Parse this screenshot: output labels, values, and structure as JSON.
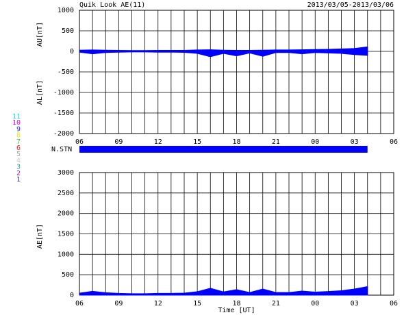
{
  "header": {
    "title": "Quik Look AE(11)",
    "date": "2013/03/05-2013/03/06"
  },
  "stations": [
    {
      "label": "11",
      "color": "#00e0e0"
    },
    {
      "label": "10",
      "color": "#e000e0"
    },
    {
      "label": "9",
      "color": "#3030ff"
    },
    {
      "label": "8",
      "color": "#e8e800"
    },
    {
      "label": "7",
      "color": "#50c050"
    },
    {
      "label": "6",
      "color": "#ff2020"
    },
    {
      "label": "5",
      "color": "#a0a0a0"
    },
    {
      "label": "4",
      "color": "#c8c8c8"
    },
    {
      "label": "3",
      "color": "#20a0a0"
    },
    {
      "label": "2",
      "color": "#a020a0"
    },
    {
      "label": "1",
      "color": "#2020c0"
    }
  ],
  "chart_data": [
    {
      "type": "area",
      "ylabels": [
        "AU[nT]",
        "AL[nT]"
      ],
      "x": [
        0,
        1,
        2,
        3,
        4,
        5,
        6,
        7,
        8,
        9,
        10,
        11,
        12,
        13,
        14,
        15,
        16,
        17,
        18,
        19,
        20,
        21,
        22
      ],
      "series": [
        {
          "name": "AU",
          "color": "#0000ff",
          "values": [
            30,
            35,
            30,
            25,
            20,
            20,
            25,
            25,
            25,
            35,
            40,
            30,
            25,
            25,
            30,
            35,
            35,
            40,
            45,
            50,
            60,
            70,
            110
          ]
        },
        {
          "name": "AL",
          "color": "#0000ff",
          "values": [
            -20,
            -60,
            -30,
            -20,
            -15,
            -15,
            -20,
            -20,
            -25,
            -50,
            -130,
            -50,
            -110,
            -40,
            -120,
            -30,
            -30,
            -60,
            -30,
            -40,
            -50,
            -80,
            -100
          ]
        }
      ],
      "xlim": [
        0,
        24
      ],
      "ylim": [
        -2000,
        1000
      ],
      "yticks": [
        -2000,
        -1500,
        -1000,
        -500,
        0,
        500,
        1000
      ],
      "xticks": [
        {
          "value": 0,
          "label": "06"
        },
        {
          "value": 3,
          "label": "09"
        },
        {
          "value": 6,
          "label": "12"
        },
        {
          "value": 9,
          "label": "15"
        },
        {
          "value": 12,
          "label": "18"
        },
        {
          "value": 15,
          "label": "21"
        },
        {
          "value": 18,
          "label": "00"
        },
        {
          "value": 21,
          "label": "03"
        },
        {
          "value": 24,
          "label": "06"
        }
      ],
      "xminorticks": [
        0,
        1,
        2,
        3,
        4,
        5,
        6,
        7,
        8,
        9,
        10,
        11,
        12,
        13,
        14,
        15,
        16,
        17,
        18,
        19,
        20,
        21,
        22,
        23,
        24
      ],
      "grid": true
    },
    {
      "type": "span",
      "label": "N.STN",
      "color": "#0000ff",
      "span": [
        0,
        22
      ],
      "xlim": [
        0,
        24
      ]
    },
    {
      "type": "area",
      "ylabels": [
        "AE[nT]"
      ],
      "xlabel": "Time [UT]",
      "x": [
        0,
        1,
        2,
        3,
        4,
        5,
        6,
        7,
        8,
        9,
        10,
        11,
        12,
        13,
        14,
        15,
        16,
        17,
        18,
        19,
        20,
        21,
        22
      ],
      "series": [
        {
          "name": "AE",
          "color": "#0000ff",
          "values": [
            50,
            95,
            60,
            45,
            35,
            35,
            45,
            45,
            50,
            85,
            170,
            80,
            135,
            65,
            150,
            65,
            65,
            100,
            75,
            90,
            110,
            150,
            210
          ]
        }
      ],
      "xlim": [
        0,
        24
      ],
      "ylim": [
        0,
        3000
      ],
      "yticks": [
        0,
        500,
        1000,
        1500,
        2000,
        2500,
        3000
      ],
      "xticks": [
        {
          "value": 0,
          "label": "06"
        },
        {
          "value": 3,
          "label": "09"
        },
        {
          "value": 6,
          "label": "12"
        },
        {
          "value": 9,
          "label": "15"
        },
        {
          "value": 12,
          "label": "18"
        },
        {
          "value": 15,
          "label": "21"
        },
        {
          "value": 18,
          "label": "00"
        },
        {
          "value": 21,
          "label": "03"
        },
        {
          "value": 24,
          "label": "06"
        }
      ],
      "xminorticks": [
        0,
        1,
        2,
        3,
        4,
        5,
        6,
        7,
        8,
        9,
        10,
        11,
        12,
        13,
        14,
        15,
        16,
        17,
        18,
        19,
        20,
        21,
        22,
        23,
        24
      ],
      "grid": true
    }
  ]
}
